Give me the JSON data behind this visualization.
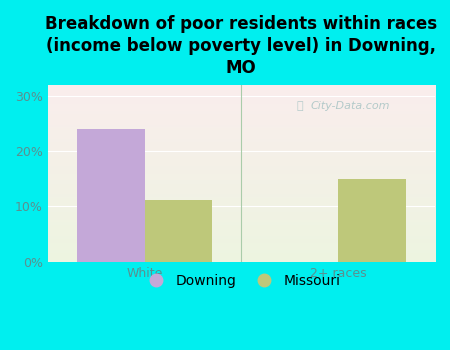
{
  "title": "Breakdown of poor residents within races\n(income below poverty level) in Downing,\nMO",
  "categories": [
    "White",
    "2+ races"
  ],
  "downing_values": [
    24.0,
    0.0
  ],
  "missouri_values": [
    11.2,
    15.0
  ],
  "downing_color": "#c4a8d8",
  "missouri_color": "#bec87a",
  "bg_color": "#00efef",
  "ylim": [
    0,
    32
  ],
  "yticks": [
    0,
    10,
    20,
    30
  ],
  "ytick_labels": [
    "0%",
    "10%",
    "20%",
    "30%"
  ],
  "bar_width": 0.35,
  "legend_labels": [
    "Downing",
    "Missouri"
  ],
  "watermark": "City-Data.com",
  "title_fontsize": 12,
  "tick_fontsize": 9,
  "legend_fontsize": 10,
  "tick_color": "#5a9090",
  "label_color": "#5a9090"
}
